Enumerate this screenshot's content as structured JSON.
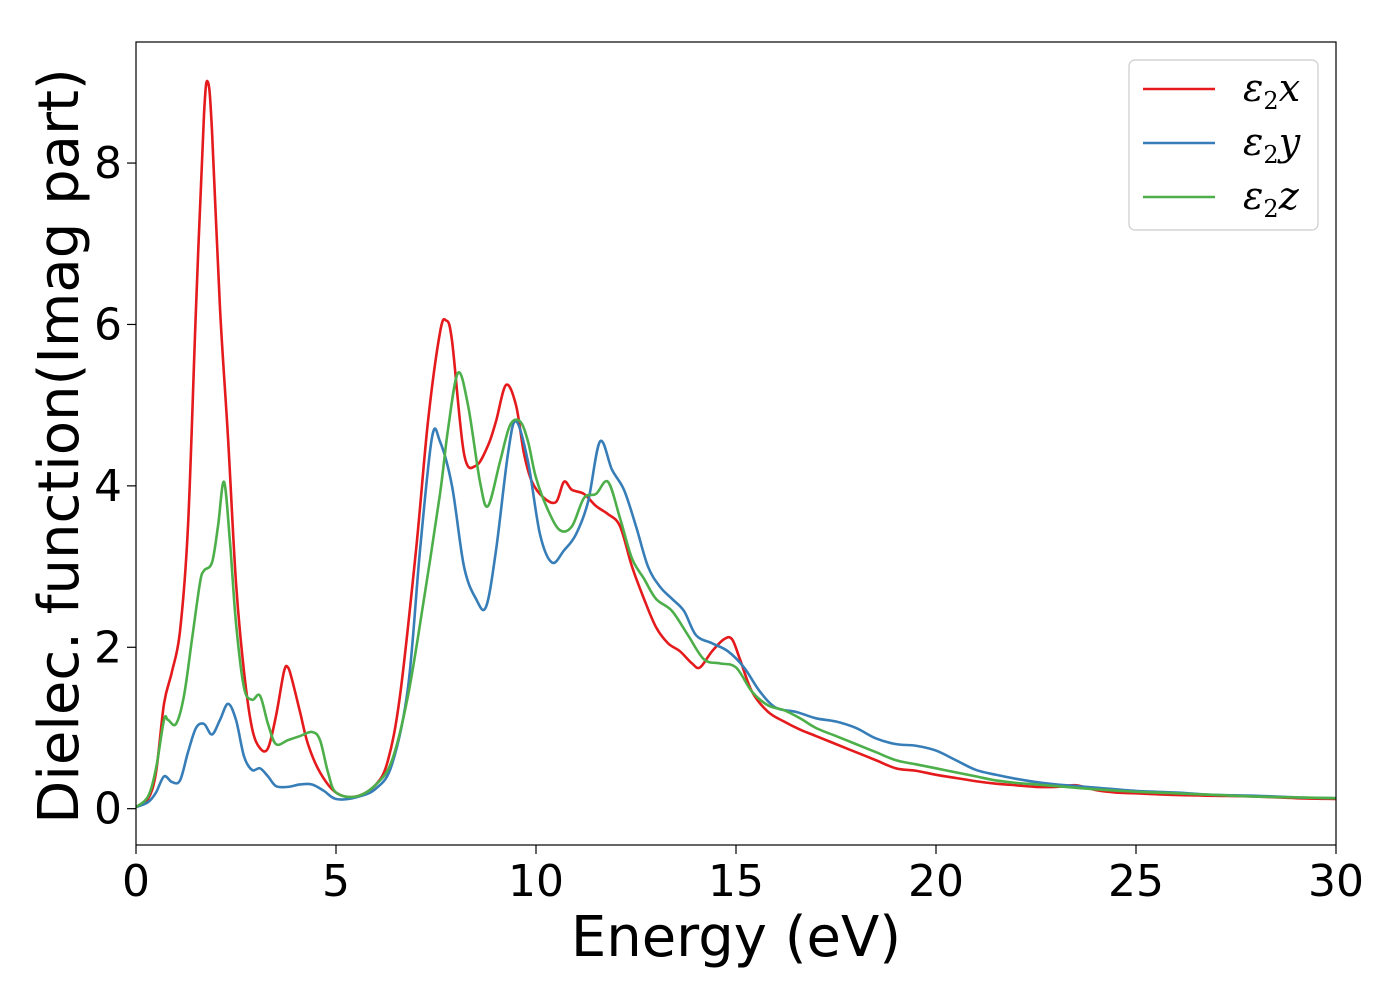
{
  "chart_data": {
    "type": "line",
    "xlabel": "Energy (eV)",
    "ylabel": "Dielec. function(Imag part)",
    "xlim": [
      0,
      30
    ],
    "ylim": [
      -0.45,
      9.5
    ],
    "xticks": [
      0,
      5,
      10,
      15,
      20,
      25,
      30
    ],
    "yticks": [
      0,
      2,
      4,
      6,
      8
    ],
    "grid": false,
    "legend_position": "top-right",
    "series": [
      {
        "name": "ε2x",
        "label_main": "ε",
        "label_sub": "2",
        "label_var": "x",
        "color": "#e41a1c",
        "x": [
          0,
          0.3,
          0.5,
          0.7,
          0.9,
          1.1,
          1.3,
          1.5,
          1.7,
          1.8,
          1.9,
          2.1,
          2.3,
          2.5,
          2.7,
          2.9,
          3.1,
          3.3,
          3.5,
          3.7,
          3.8,
          3.9,
          4.1,
          4.3,
          4.6,
          5.0,
          5.5,
          6.0,
          6.3,
          6.6,
          7.0,
          7.3,
          7.6,
          7.75,
          7.9,
          8.2,
          8.5,
          8.8,
          9.0,
          9.25,
          9.5,
          9.7,
          9.9,
          10.2,
          10.5,
          10.7,
          10.9,
          11.2,
          11.5,
          11.8,
          12.1,
          12.4,
          12.7,
          13.0,
          13.3,
          13.6,
          13.9,
          14.1,
          14.4,
          14.7,
          14.9,
          15.1,
          15.4,
          15.8,
          16.2,
          16.6,
          17.0,
          17.5,
          18.0,
          18.5,
          19.0,
          19.5,
          20.0,
          20.5,
          21.0,
          21.5,
          22.0,
          22.5,
          23.0,
          23.5,
          24.0,
          24.5,
          25.0,
          26.0,
          27.0,
          28.0,
          29.0,
          30.0
        ],
        "values": [
          0.02,
          0.12,
          0.45,
          1.3,
          1.7,
          2.2,
          3.5,
          6.2,
          8.6,
          9.0,
          8.4,
          6.2,
          4.6,
          2.8,
          1.7,
          1.0,
          0.75,
          0.75,
          1.15,
          1.7,
          1.75,
          1.6,
          1.2,
          0.8,
          0.45,
          0.2,
          0.15,
          0.3,
          0.6,
          1.4,
          3.2,
          4.8,
          5.9,
          6.05,
          5.8,
          4.4,
          4.25,
          4.5,
          4.8,
          5.25,
          5.0,
          4.4,
          4.05,
          3.85,
          3.8,
          4.05,
          3.95,
          3.9,
          3.75,
          3.65,
          3.5,
          3.0,
          2.6,
          2.25,
          2.05,
          1.95,
          1.8,
          1.75,
          1.95,
          2.1,
          2.1,
          1.85,
          1.45,
          1.2,
          1.08,
          0.98,
          0.9,
          0.8,
          0.7,
          0.6,
          0.5,
          0.47,
          0.42,
          0.38,
          0.34,
          0.31,
          0.29,
          0.27,
          0.27,
          0.29,
          0.23,
          0.2,
          0.19,
          0.17,
          0.16,
          0.15,
          0.13,
          0.12
        ]
      },
      {
        "name": "ε2y",
        "label_main": "ε",
        "label_sub": "2",
        "label_var": "y",
        "color": "#377eb8",
        "x": [
          0,
          0.3,
          0.5,
          0.7,
          0.9,
          1.1,
          1.3,
          1.5,
          1.7,
          1.9,
          2.1,
          2.3,
          2.5,
          2.7,
          2.9,
          3.1,
          3.3,
          3.5,
          3.8,
          4.1,
          4.4,
          4.7,
          5.0,
          5.5,
          6.0,
          6.4,
          6.8,
          7.1,
          7.4,
          7.6,
          7.9,
          8.2,
          8.5,
          8.75,
          9.0,
          9.3,
          9.5,
          9.8,
          10.1,
          10.4,
          10.7,
          11.0,
          11.3,
          11.6,
          11.9,
          12.2,
          12.5,
          12.8,
          13.1,
          13.4,
          13.7,
          14.0,
          14.4,
          14.8,
          15.2,
          15.6,
          16.0,
          16.5,
          17.0,
          17.5,
          18.0,
          18.5,
          19.0,
          19.5,
          20.0,
          20.5,
          21.0,
          21.5,
          22.0,
          22.5,
          23.0,
          23.5,
          24.0,
          25.0,
          26.0,
          27.0,
          28.0,
          29.0,
          30.0
        ],
        "values": [
          0.02,
          0.08,
          0.2,
          0.4,
          0.33,
          0.35,
          0.7,
          1.0,
          1.05,
          0.92,
          1.1,
          1.3,
          1.1,
          0.65,
          0.48,
          0.5,
          0.4,
          0.28,
          0.27,
          0.3,
          0.3,
          0.22,
          0.12,
          0.14,
          0.25,
          0.55,
          1.5,
          3.2,
          4.6,
          4.55,
          4.0,
          3.0,
          2.6,
          2.5,
          3.2,
          4.4,
          4.8,
          4.3,
          3.4,
          3.05,
          3.2,
          3.4,
          3.8,
          4.55,
          4.2,
          3.95,
          3.5,
          3.0,
          2.75,
          2.6,
          2.45,
          2.15,
          2.05,
          1.95,
          1.75,
          1.45,
          1.25,
          1.2,
          1.12,
          1.08,
          1.0,
          0.87,
          0.8,
          0.78,
          0.72,
          0.6,
          0.48,
          0.42,
          0.37,
          0.33,
          0.3,
          0.28,
          0.26,
          0.22,
          0.2,
          0.17,
          0.16,
          0.14,
          0.13
        ]
      },
      {
        "name": "ε2z",
        "label_main": "ε",
        "label_sub": "2",
        "label_var": "z",
        "color": "#4daf4a",
        "x": [
          0,
          0.3,
          0.5,
          0.7,
          0.8,
          1.0,
          1.2,
          1.4,
          1.6,
          1.7,
          1.9,
          2.05,
          2.2,
          2.35,
          2.5,
          2.7,
          2.9,
          3.1,
          3.3,
          3.5,
          3.8,
          4.1,
          4.4,
          4.6,
          4.8,
          5.0,
          5.5,
          6.0,
          6.4,
          6.8,
          7.2,
          7.6,
          7.8,
          8.05,
          8.3,
          8.6,
          8.8,
          9.1,
          9.35,
          9.6,
          9.8,
          10.0,
          10.3,
          10.6,
          10.9,
          11.2,
          11.5,
          11.8,
          12.1,
          12.4,
          12.7,
          13.0,
          13.4,
          13.8,
          14.2,
          14.6,
          15.0,
          15.4,
          15.8,
          16.2,
          16.6,
          17.0,
          17.5,
          18.0,
          18.5,
          19.0,
          19.5,
          20.0,
          20.5,
          21.0,
          21.5,
          22.0,
          22.5,
          23.0,
          24.0,
          25.0,
          26.0,
          27.0,
          28.0,
          29.0,
          30.0
        ],
        "values": [
          0.02,
          0.15,
          0.5,
          1.1,
          1.1,
          1.05,
          1.4,
          2.1,
          2.8,
          2.95,
          3.05,
          3.5,
          4.05,
          3.3,
          2.3,
          1.5,
          1.35,
          1.4,
          1.05,
          0.8,
          0.85,
          0.9,
          0.95,
          0.85,
          0.45,
          0.2,
          0.15,
          0.3,
          0.6,
          1.4,
          2.6,
          3.9,
          4.7,
          5.4,
          5.0,
          4.05,
          3.75,
          4.3,
          4.75,
          4.8,
          4.55,
          4.1,
          3.7,
          3.45,
          3.5,
          3.85,
          3.9,
          4.05,
          3.6,
          3.1,
          2.85,
          2.6,
          2.45,
          2.15,
          1.85,
          1.8,
          1.75,
          1.45,
          1.28,
          1.22,
          1.12,
          1.0,
          0.9,
          0.8,
          0.7,
          0.6,
          0.55,
          0.5,
          0.45,
          0.4,
          0.35,
          0.32,
          0.3,
          0.28,
          0.24,
          0.21,
          0.19,
          0.17,
          0.15,
          0.14,
          0.13
        ]
      }
    ]
  }
}
